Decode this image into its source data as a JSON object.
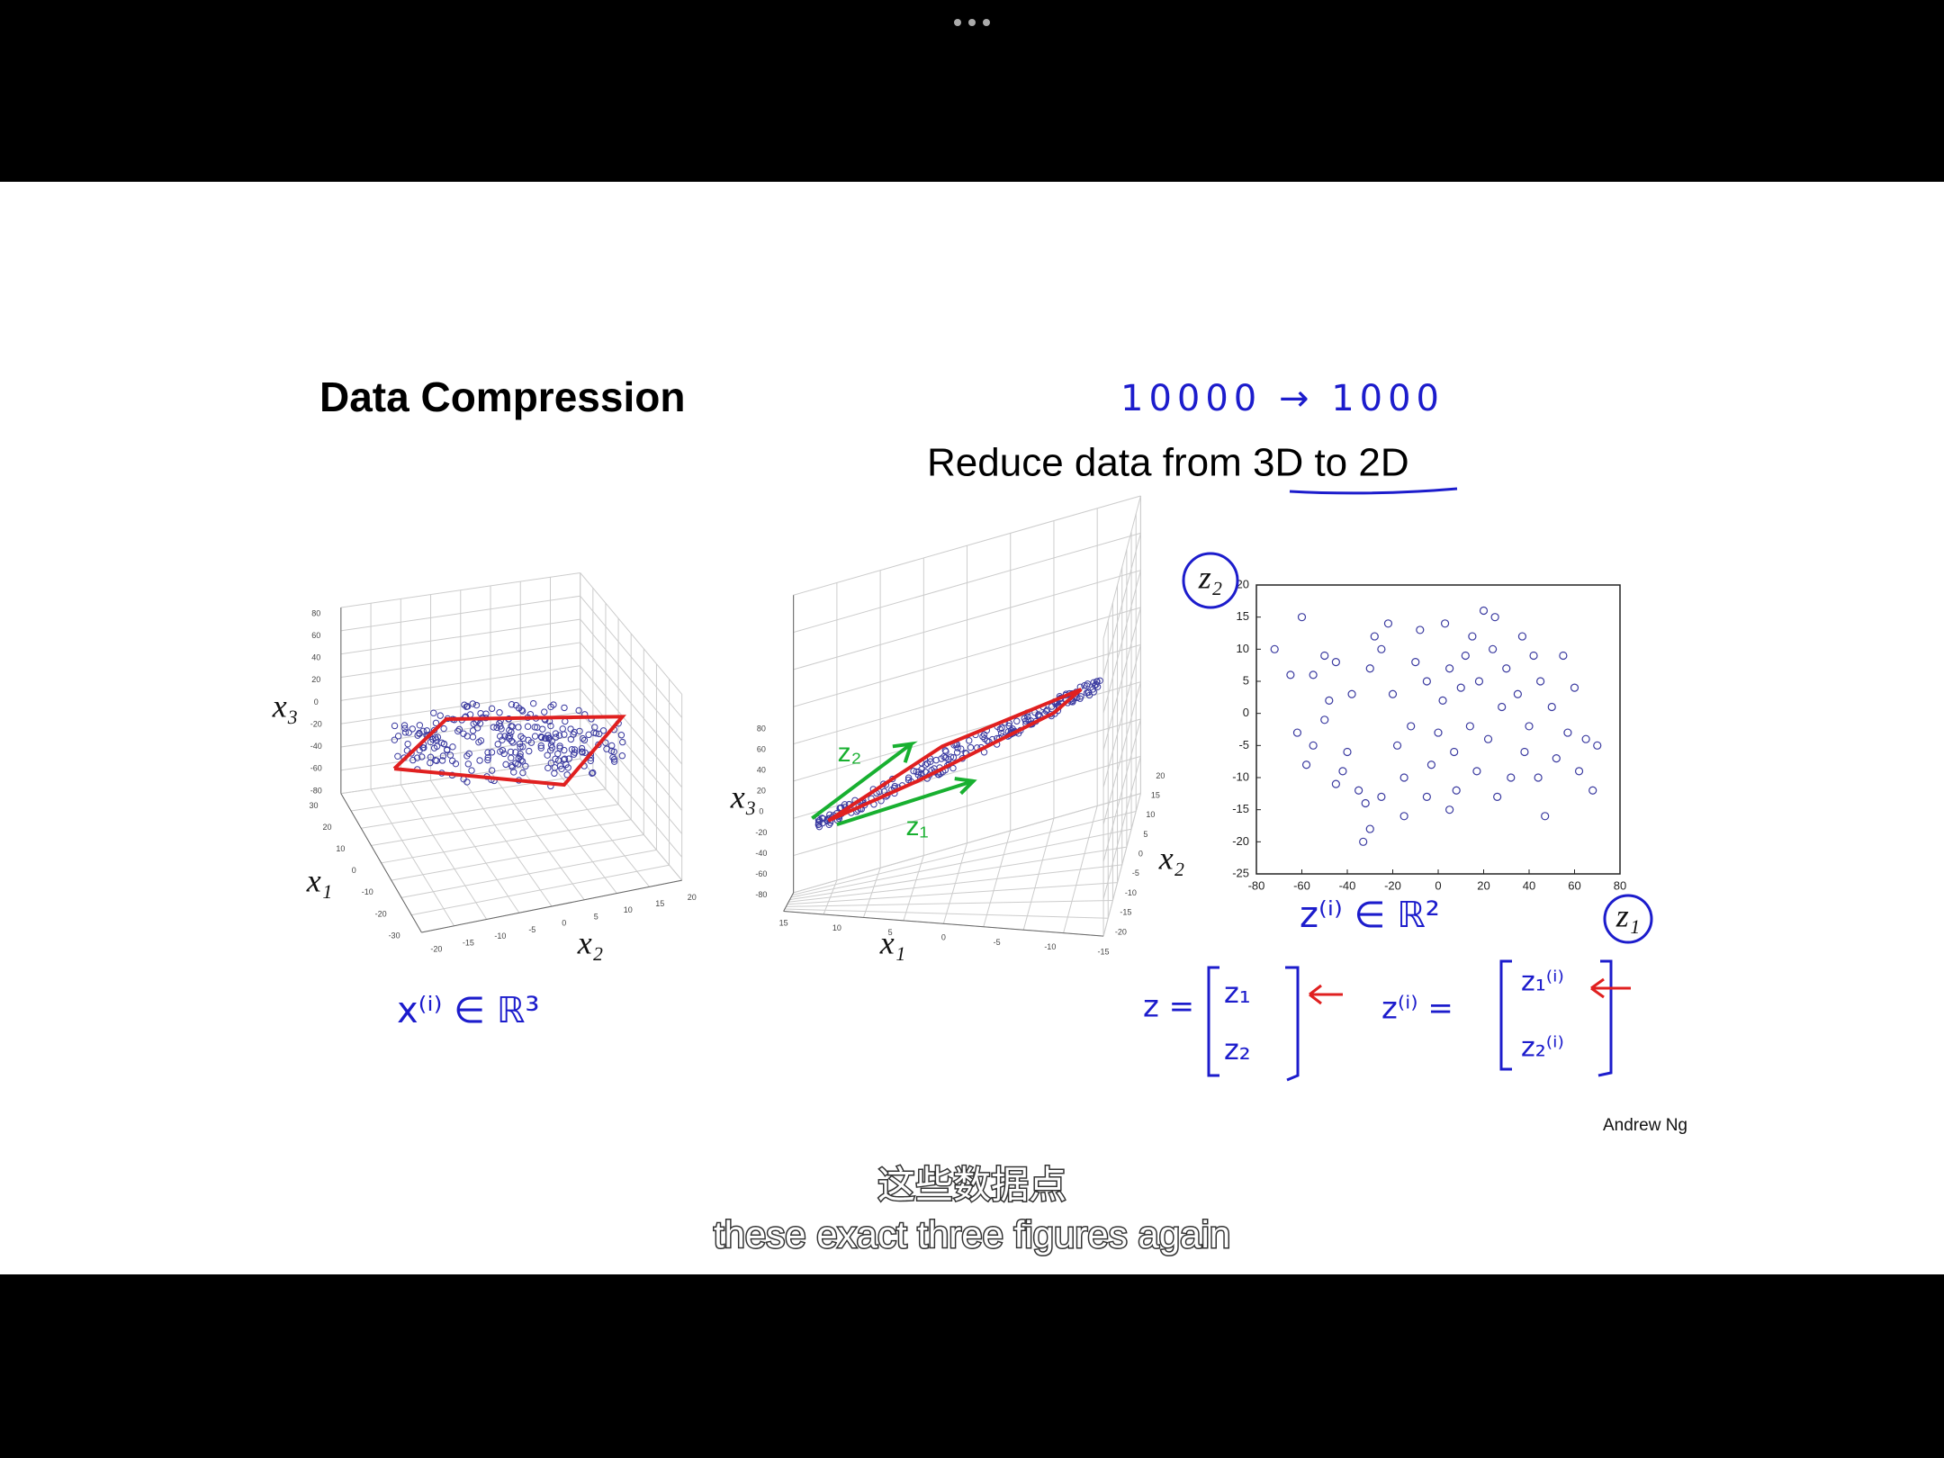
{
  "slide": {
    "title": "Data Compression",
    "handwritten_note": "10000 → 1000",
    "subtitle": "Reduce data from 3D to 2D",
    "credit": "Andrew Ng"
  },
  "figure_left": {
    "x1_label": "x₁",
    "x2_label": "x₂",
    "x3_label": "x₃",
    "x1_ticks": [
      30,
      20,
      10,
      0,
      -10,
      -20,
      -30
    ],
    "x2_ticks": [
      -20,
      -15,
      -10,
      -5,
      0,
      5,
      10,
      15,
      20
    ],
    "x3_ticks": [
      80,
      60,
      40,
      20,
      0,
      -20,
      -40,
      -60,
      -80
    ],
    "annotation": "x⁽ⁱ⁾ ∈ ℝ³"
  },
  "figure_middle": {
    "x1_label": "x₁",
    "x2_label": "x₂",
    "x3_label": "x₃",
    "x1_ticks": [
      15,
      10,
      5,
      0,
      -5,
      -10,
      -15
    ],
    "x2_ticks": [
      20,
      15,
      10,
      5,
      0,
      -5,
      -10,
      -15,
      -20
    ],
    "x3_ticks": [
      80,
      60,
      40,
      20,
      0,
      -20,
      -40,
      -60,
      -80
    ],
    "z1_label": "z₁",
    "z2_label": "z₂"
  },
  "chart_data": {
    "type": "scatter",
    "x": [
      -72,
      -60,
      -65,
      -55,
      -50,
      -45,
      -62,
      -55,
      -50,
      -48,
      -40,
      -42,
      -35,
      -32,
      -33,
      -30,
      -38,
      -30,
      -28,
      -25,
      -22,
      -20,
      -18,
      -15,
      -12,
      -10,
      -8,
      -5,
      -3,
      0,
      2,
      3,
      5,
      7,
      8,
      10,
      12,
      14,
      15,
      17,
      18,
      20,
      22,
      24,
      26,
      28,
      30,
      32,
      35,
      37,
      38,
      40,
      42,
      44,
      45,
      47,
      50,
      52,
      55,
      57,
      60,
      62,
      65,
      68,
      70,
      -15,
      -25,
      -5,
      5,
      25,
      -45,
      -58
    ],
    "y": [
      10,
      15,
      6,
      6,
      9,
      8,
      -3,
      -5,
      -1,
      2,
      -6,
      -9,
      -12,
      -14,
      -20,
      -18,
      3,
      7,
      12,
      10,
      14,
      3,
      -5,
      -10,
      -2,
      8,
      13,
      5,
      -8,
      -3,
      2,
      14,
      7,
      -6,
      -12,
      4,
      9,
      -2,
      12,
      -9,
      5,
      16,
      -4,
      10,
      -13,
      1,
      7,
      -10,
      3,
      12,
      -6,
      -2,
      9,
      -10,
      5,
      -16,
      1,
      -7,
      9,
      -3,
      4,
      -9,
      -4,
      -12,
      -5,
      -16,
      -13,
      -13,
      -15,
      15,
      -11,
      -8
    ],
    "color": "#3a3aa0",
    "xlim": [
      -80,
      80
    ],
    "ylim": [
      -25,
      20
    ],
    "xticks": [
      -80,
      -60,
      -40,
      -20,
      0,
      20,
      40,
      60,
      80
    ],
    "yticks": [
      -25,
      -20,
      -15,
      -10,
      -5,
      0,
      5,
      10,
      15,
      20
    ],
    "x_label": "z₁",
    "y_label": "z₂",
    "annotation": "z⁽ⁱ⁾ ∈ ℝ²"
  },
  "vectors": {
    "z": {
      "lhs": "z =",
      "entries": [
        "z₁",
        "z₂"
      ]
    },
    "z_i": {
      "lhs": "z⁽ⁱ⁾ =",
      "entries": [
        "z₁⁽ⁱ⁾",
        "z₂⁽ⁱ⁾"
      ]
    }
  },
  "captions": {
    "chinese": "这些数据点",
    "english": "these exact three figures again"
  }
}
